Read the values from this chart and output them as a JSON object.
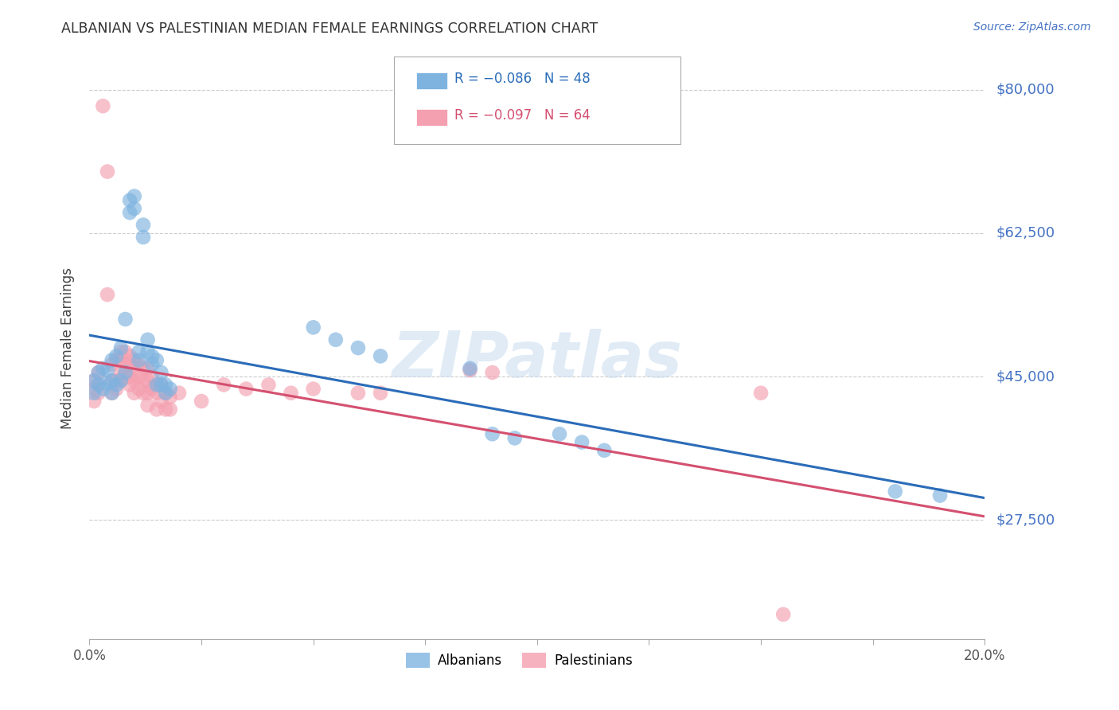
{
  "title": "ALBANIAN VS PALESTINIAN MEDIAN FEMALE EARNINGS CORRELATION CHART",
  "source": "Source: ZipAtlas.com",
  "ylabel": "Median Female Earnings",
  "ytick_labels": [
    "$80,000",
    "$62,500",
    "$45,000",
    "$27,500"
  ],
  "ytick_values": [
    80000,
    62500,
    45000,
    27500
  ],
  "ymin": 13000,
  "ymax": 84000,
  "xmin": 0.0,
  "xmax": 0.2,
  "legend_r_albanian": "R = −0.086",
  "legend_n_albanian": "N = 48",
  "legend_r_palestinian": "R = −0.097",
  "legend_n_palestinian": "N = 64",
  "albanian_color": "#7EB3E0",
  "palestinian_color": "#F4A0B0",
  "regression_albanian_color": "#2B6CB8",
  "regression_palestinian_color": "#D45070",
  "watermark": "ZIPatlas",
  "albanian_data": [
    [
      0.001,
      44500
    ],
    [
      0.001,
      43000
    ],
    [
      0.002,
      45500
    ],
    [
      0.002,
      44000
    ],
    [
      0.003,
      46000
    ],
    [
      0.003,
      43500
    ],
    [
      0.004,
      45800
    ],
    [
      0.004,
      44200
    ],
    [
      0.005,
      47000
    ],
    [
      0.005,
      44500
    ],
    [
      0.005,
      43000
    ],
    [
      0.006,
      47500
    ],
    [
      0.006,
      44000
    ],
    [
      0.007,
      48500
    ],
    [
      0.007,
      44500
    ],
    [
      0.008,
      52000
    ],
    [
      0.008,
      45500
    ],
    [
      0.009,
      66500
    ],
    [
      0.009,
      65000
    ],
    [
      0.01,
      67000
    ],
    [
      0.01,
      65500
    ],
    [
      0.011,
      48000
    ],
    [
      0.011,
      47000
    ],
    [
      0.012,
      63500
    ],
    [
      0.012,
      62000
    ],
    [
      0.013,
      49500
    ],
    [
      0.013,
      48000
    ],
    [
      0.014,
      47500
    ],
    [
      0.014,
      46500
    ],
    [
      0.015,
      47000
    ],
    [
      0.015,
      44000
    ],
    [
      0.016,
      45500
    ],
    [
      0.016,
      44000
    ],
    [
      0.017,
      44000
    ],
    [
      0.017,
      43000
    ],
    [
      0.018,
      43500
    ],
    [
      0.05,
      51000
    ],
    [
      0.055,
      49500
    ],
    [
      0.06,
      48500
    ],
    [
      0.065,
      47500
    ],
    [
      0.085,
      46000
    ],
    [
      0.09,
      38000
    ],
    [
      0.095,
      37500
    ],
    [
      0.105,
      38000
    ],
    [
      0.11,
      37000
    ],
    [
      0.115,
      36000
    ],
    [
      0.18,
      31000
    ],
    [
      0.19,
      30500
    ]
  ],
  "palestinian_data": [
    [
      0.001,
      44500
    ],
    [
      0.001,
      43500
    ],
    [
      0.001,
      42000
    ],
    [
      0.002,
      45500
    ],
    [
      0.002,
      44000
    ],
    [
      0.002,
      43000
    ],
    [
      0.003,
      78000
    ],
    [
      0.004,
      70000
    ],
    [
      0.004,
      55000
    ],
    [
      0.005,
      46500
    ],
    [
      0.005,
      44500
    ],
    [
      0.005,
      43000
    ],
    [
      0.006,
      47000
    ],
    [
      0.006,
      44500
    ],
    [
      0.006,
      43500
    ],
    [
      0.007,
      48000
    ],
    [
      0.007,
      47000
    ],
    [
      0.007,
      45500
    ],
    [
      0.007,
      44500
    ],
    [
      0.008,
      48000
    ],
    [
      0.008,
      46500
    ],
    [
      0.008,
      45500
    ],
    [
      0.009,
      47500
    ],
    [
      0.009,
      46500
    ],
    [
      0.009,
      45000
    ],
    [
      0.009,
      44000
    ],
    [
      0.01,
      47000
    ],
    [
      0.01,
      46000
    ],
    [
      0.01,
      44500
    ],
    [
      0.01,
      43000
    ],
    [
      0.011,
      46500
    ],
    [
      0.011,
      45000
    ],
    [
      0.011,
      43500
    ],
    [
      0.012,
      46000
    ],
    [
      0.012,
      44500
    ],
    [
      0.012,
      43000
    ],
    [
      0.013,
      46000
    ],
    [
      0.013,
      44500
    ],
    [
      0.013,
      43000
    ],
    [
      0.013,
      41500
    ],
    [
      0.014,
      45000
    ],
    [
      0.014,
      43500
    ],
    [
      0.015,
      44000
    ],
    [
      0.015,
      43000
    ],
    [
      0.015,
      41000
    ],
    [
      0.016,
      44000
    ],
    [
      0.016,
      42000
    ],
    [
      0.017,
      43000
    ],
    [
      0.017,
      41000
    ],
    [
      0.018,
      42500
    ],
    [
      0.018,
      41000
    ],
    [
      0.02,
      43000
    ],
    [
      0.025,
      42000
    ],
    [
      0.03,
      44000
    ],
    [
      0.035,
      43500
    ],
    [
      0.04,
      44000
    ],
    [
      0.045,
      43000
    ],
    [
      0.05,
      43500
    ],
    [
      0.06,
      43000
    ],
    [
      0.065,
      43000
    ],
    [
      0.085,
      45800
    ],
    [
      0.09,
      45500
    ],
    [
      0.15,
      43000
    ],
    [
      0.155,
      16000
    ]
  ]
}
